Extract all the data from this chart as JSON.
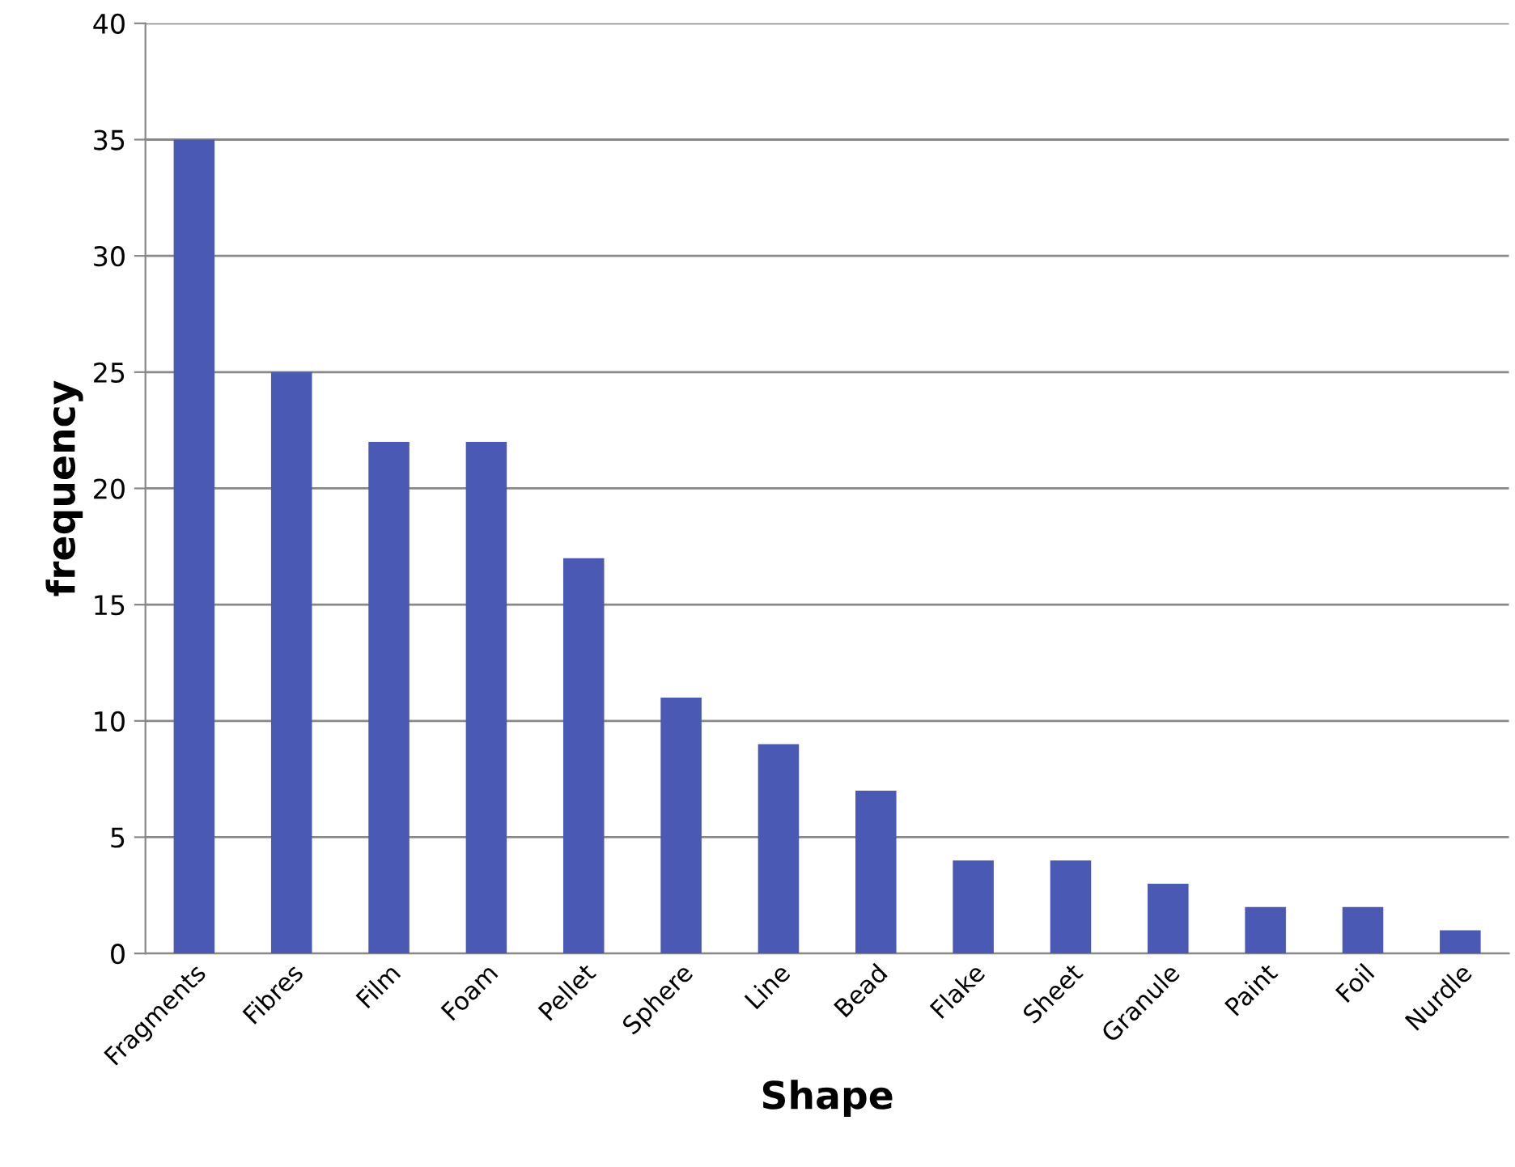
{
  "chart_data": {
    "type": "bar",
    "xlabel": "Shape",
    "ylabel": "frequency",
    "categories": [
      "Fragments",
      "Fibres",
      "Film",
      "Foam",
      "Pellet",
      "Sphere",
      "Line",
      "Bead",
      "Flake",
      "Sheet",
      "Granule",
      "Paint",
      "Foil",
      "Nurdle"
    ],
    "values": [
      35,
      25,
      22,
      22,
      17,
      11,
      9,
      7,
      4,
      4,
      3,
      2,
      2,
      1
    ],
    "color": "#4a5ab4",
    "ylim": [
      0,
      40
    ],
    "yticks": [
      0,
      5,
      10,
      15,
      20,
      25,
      30,
      35,
      40
    ],
    "grid": "y",
    "legend": false
  }
}
